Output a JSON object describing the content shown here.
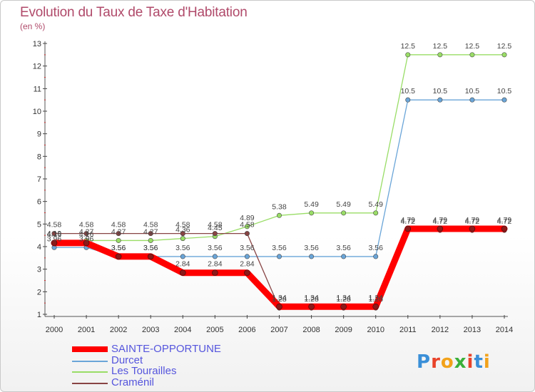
{
  "title": "Evolution du Taux de Taxe d'Habitation",
  "unit": "(en %)",
  "logo": [
    "P",
    "r",
    "o",
    "x",
    "i",
    "t",
    "i"
  ],
  "logo_colors": [
    "#3a8fd8",
    "#e8432a",
    "#f2a21a",
    "#3ab03a",
    "#e8432a",
    "#3a8fd8",
    "#f2a21a"
  ],
  "chart_data": {
    "type": "line",
    "title": "Evolution du Taux de Taxe d'Habitation",
    "ylabel": "(en %)",
    "x": [
      "2000",
      "2001",
      "2002",
      "2003",
      "2004",
      "2005",
      "2006",
      "2007",
      "2008",
      "2009",
      "2010",
      "2011",
      "2012",
      "2013",
      "2014"
    ],
    "ylim": [
      1,
      13
    ],
    "yticks": [
      1,
      2,
      3,
      4,
      5,
      6,
      7,
      8,
      9,
      10,
      11,
      12,
      13
    ],
    "grid": false,
    "legend": "bottom-left",
    "series": [
      {
        "name": "SAINTE-OPPORTUNE",
        "color": "#ff0000",
        "values": [
          4.16,
          4.16,
          3.56,
          3.56,
          2.84,
          2.84,
          2.84,
          1.34,
          1.34,
          1.34,
          1.34,
          4.79,
          4.79,
          4.79,
          4.79
        ],
        "labels": [
          "4.16",
          "4.16",
          "3.56",
          "3.56",
          "2.84",
          "2.84",
          "2.84",
          "1.34",
          "1.34",
          "1.34",
          "1.34",
          "4.79",
          "4.79",
          "4.79",
          "4.79"
        ]
      },
      {
        "name": "Durcet",
        "color": "#6aa5d8",
        "values": [
          3.96,
          3.96,
          3.56,
          3.56,
          3.56,
          3.56,
          3.56,
          3.56,
          3.56,
          3.56,
          3.56,
          10.5,
          10.5,
          10.5,
          10.5
        ],
        "labels": [
          "3.96",
          "3.96",
          "3.56",
          "3.56",
          "3.56",
          "3.56",
          "3.56",
          "3.56",
          "3.56",
          "3.56",
          "3.56",
          "10.5",
          "10.5",
          "10.5",
          "10.5"
        ]
      },
      {
        "name": "Les Tourailles",
        "color": "#99dd66",
        "values": [
          4.19,
          4.27,
          4.27,
          4.27,
          4.36,
          4.45,
          4.89,
          5.38,
          5.49,
          5.49,
          5.49,
          12.5,
          12.5,
          12.5,
          12.5
        ],
        "labels": [
          "4.19",
          "4.27",
          "4.27",
          "4.27",
          "4.36",
          "4.45",
          "4.89",
          "5.38",
          "5.49",
          "5.49",
          "5.49",
          "12.5",
          "12.5",
          "12.5",
          "12.5"
        ]
      },
      {
        "name": "Craménil",
        "color": "#884444",
        "values": [
          4.58,
          4.58,
          4.58,
          4.58,
          4.58,
          4.58,
          4.58,
          1.28,
          1.28,
          1.28,
          1.28,
          4.72,
          4.72,
          4.72,
          4.72
        ],
        "labels": [
          "4.58",
          "4.58",
          "4.58",
          "4.58",
          "4.58",
          "4.58",
          "4.58",
          "1.28",
          "1.28",
          "1.28",
          "1.28",
          "4.72",
          "4.72",
          "4.72",
          "4.72"
        ]
      }
    ]
  }
}
